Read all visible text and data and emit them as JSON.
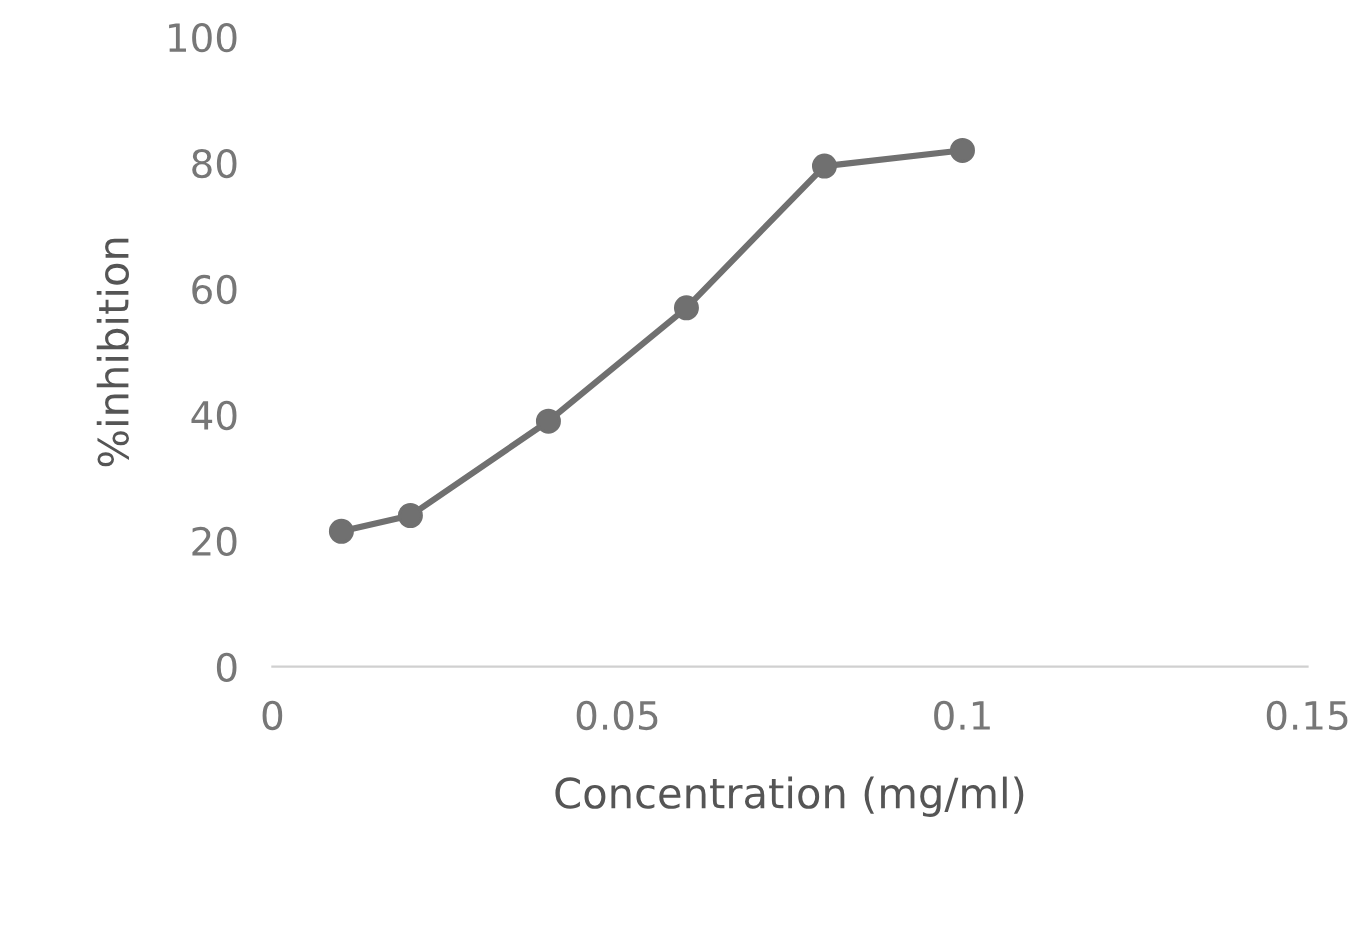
{
  "chart_data": {
    "type": "line",
    "xlabel": "Concentration (mg/ml)",
    "ylabel": "%inhibition",
    "x": [
      0.01,
      0.02,
      0.04,
      0.06,
      0.08,
      0.1
    ],
    "series": [
      {
        "color": "#707070",
        "values": [
          21.5,
          24,
          39,
          57,
          79.5,
          82
        ]
      }
    ],
    "xlim": [
      0,
      0.15
    ],
    "xticks": [
      0,
      0.05,
      0.1,
      0.15
    ],
    "ylim": [
      0,
      100
    ],
    "yticks": [
      0,
      20,
      40,
      60,
      80,
      100
    ],
    "marker": "circle",
    "line_style": "solid",
    "grid": false,
    "legend": false
  }
}
